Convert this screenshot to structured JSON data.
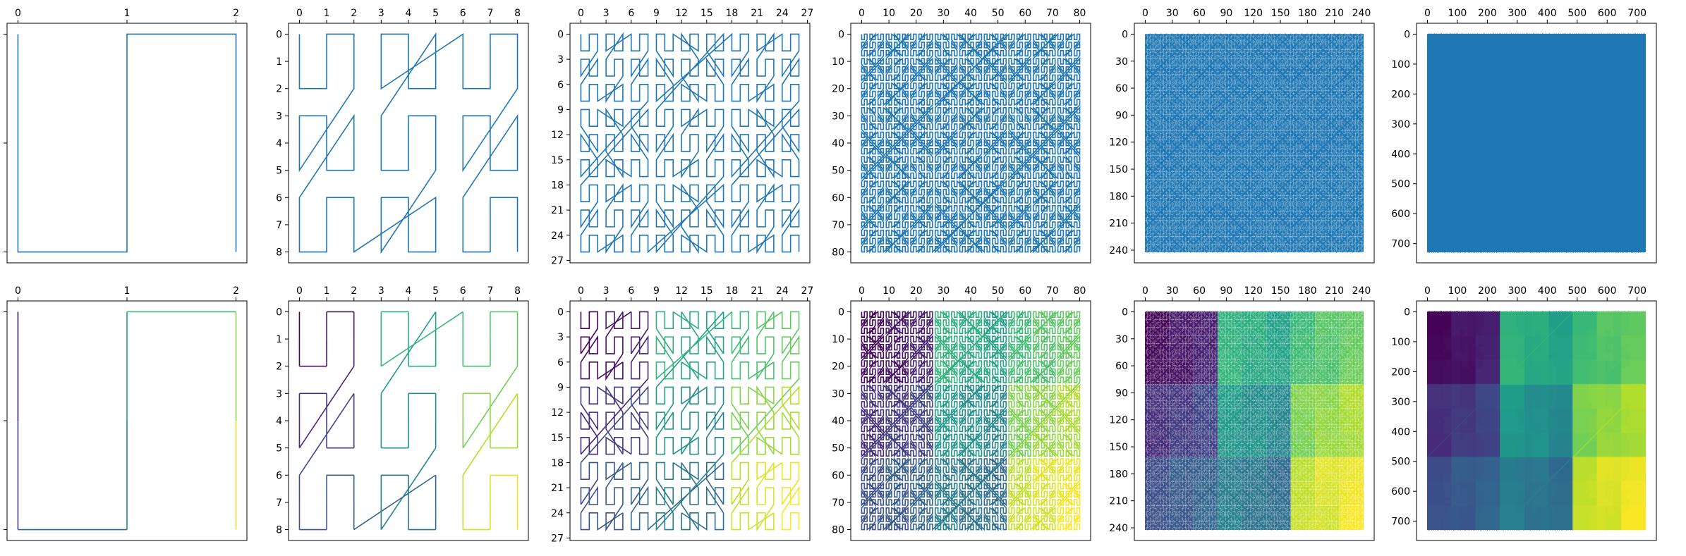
{
  "figure": {
    "rows": 2,
    "cols": 6
  },
  "chart_data": [
    {
      "type": "line",
      "row": 0,
      "col": 0,
      "curve": "peano",
      "level": 1,
      "coloring": "single",
      "line_color": "#1f77b4",
      "xlim": [
        0,
        2
      ],
      "ylim": [
        2,
        0
      ],
      "x_ticks": [
        0,
        1,
        2
      ],
      "y_ticks": [
        0,
        1,
        2
      ]
    },
    {
      "type": "line",
      "row": 0,
      "col": 1,
      "curve": "peano",
      "level": 2,
      "coloring": "single",
      "line_color": "#1f77b4",
      "xlim": [
        0,
        8
      ],
      "ylim": [
        8,
        0
      ],
      "x_ticks": [
        0,
        1,
        2,
        3,
        4,
        5,
        6,
        7,
        8
      ],
      "y_ticks": [
        0,
        1,
        2,
        3,
        4,
        5,
        6,
        7,
        8
      ]
    },
    {
      "type": "line",
      "row": 0,
      "col": 2,
      "curve": "peano",
      "level": 3,
      "coloring": "single",
      "line_color": "#1f77b4",
      "xlim": [
        0,
        26
      ],
      "ylim": [
        26,
        0
      ],
      "x_ticks": [
        0,
        3,
        6,
        9,
        12,
        15,
        18,
        21,
        24,
        27
      ],
      "y_ticks": [
        0,
        3,
        6,
        9,
        12,
        15,
        18,
        21,
        24,
        27
      ]
    },
    {
      "type": "line",
      "row": 0,
      "col": 3,
      "curve": "peano",
      "level": 4,
      "coloring": "single",
      "line_color": "#1f77b4",
      "xlim": [
        0,
        80
      ],
      "ylim": [
        80,
        0
      ],
      "x_ticks": [
        0,
        10,
        20,
        30,
        40,
        50,
        60,
        70,
        80
      ],
      "y_ticks": [
        0,
        10,
        20,
        30,
        40,
        50,
        60,
        70,
        80
      ]
    },
    {
      "type": "line",
      "row": 0,
      "col": 4,
      "curve": "peano",
      "level": 5,
      "coloring": "single",
      "line_color": "#1f77b4",
      "xlim": [
        0,
        242
      ],
      "ylim": [
        242,
        0
      ],
      "x_ticks": [
        0,
        30,
        60,
        90,
        120,
        150,
        180,
        210,
        240
      ],
      "y_ticks": [
        0,
        30,
        60,
        90,
        120,
        150,
        180,
        210,
        240
      ]
    },
    {
      "type": "line",
      "row": 0,
      "col": 5,
      "curve": "peano",
      "level": 6,
      "coloring": "single",
      "line_color": "#1f77b4",
      "xlim": [
        0,
        728
      ],
      "ylim": [
        728,
        0
      ],
      "x_ticks": [
        0,
        100,
        200,
        300,
        400,
        500,
        600,
        700
      ],
      "y_ticks": [
        0,
        100,
        200,
        300,
        400,
        500,
        600,
        700
      ]
    },
    {
      "type": "line",
      "row": 1,
      "col": 0,
      "curve": "peano",
      "level": 1,
      "coloring": "viridis",
      "xlim": [
        0,
        2
      ],
      "ylim": [
        2,
        0
      ],
      "x_ticks": [
        0,
        1,
        2
      ],
      "y_ticks": [
        0,
        1,
        2
      ]
    },
    {
      "type": "line",
      "row": 1,
      "col": 1,
      "curve": "peano",
      "level": 2,
      "coloring": "viridis",
      "xlim": [
        0,
        8
      ],
      "ylim": [
        8,
        0
      ],
      "x_ticks": [
        0,
        1,
        2,
        3,
        4,
        5,
        6,
        7,
        8
      ],
      "y_ticks": [
        0,
        1,
        2,
        3,
        4,
        5,
        6,
        7,
        8
      ]
    },
    {
      "type": "line",
      "row": 1,
      "col": 2,
      "curve": "peano",
      "level": 3,
      "coloring": "viridis",
      "xlim": [
        0,
        26
      ],
      "ylim": [
        26,
        0
      ],
      "x_ticks": [
        0,
        3,
        6,
        9,
        12,
        15,
        18,
        21,
        24,
        27
      ],
      "y_ticks": [
        0,
        3,
        6,
        9,
        12,
        15,
        18,
        21,
        24,
        27
      ]
    },
    {
      "type": "line",
      "row": 1,
      "col": 3,
      "curve": "peano",
      "level": 4,
      "coloring": "viridis",
      "xlim": [
        0,
        80
      ],
      "ylim": [
        80,
        0
      ],
      "x_ticks": [
        0,
        10,
        20,
        30,
        40,
        50,
        60,
        70,
        80
      ],
      "y_ticks": [
        0,
        10,
        20,
        30,
        40,
        50,
        60,
        70,
        80
      ]
    },
    {
      "type": "line",
      "row": 1,
      "col": 4,
      "curve": "peano",
      "level": 5,
      "coloring": "viridis",
      "xlim": [
        0,
        242
      ],
      "ylim": [
        242,
        0
      ],
      "x_ticks": [
        0,
        30,
        60,
        90,
        120,
        150,
        180,
        210,
        240
      ],
      "y_ticks": [
        0,
        30,
        60,
        90,
        120,
        150,
        180,
        210,
        240
      ]
    },
    {
      "type": "line",
      "row": 1,
      "col": 5,
      "curve": "peano",
      "level": 6,
      "coloring": "viridis",
      "xlim": [
        0,
        728
      ],
      "ylim": [
        728,
        0
      ],
      "x_ticks": [
        0,
        100,
        200,
        300,
        400,
        500,
        600,
        700
      ],
      "y_ticks": [
        0,
        100,
        200,
        300,
        400,
        500,
        600,
        700
      ]
    }
  ]
}
